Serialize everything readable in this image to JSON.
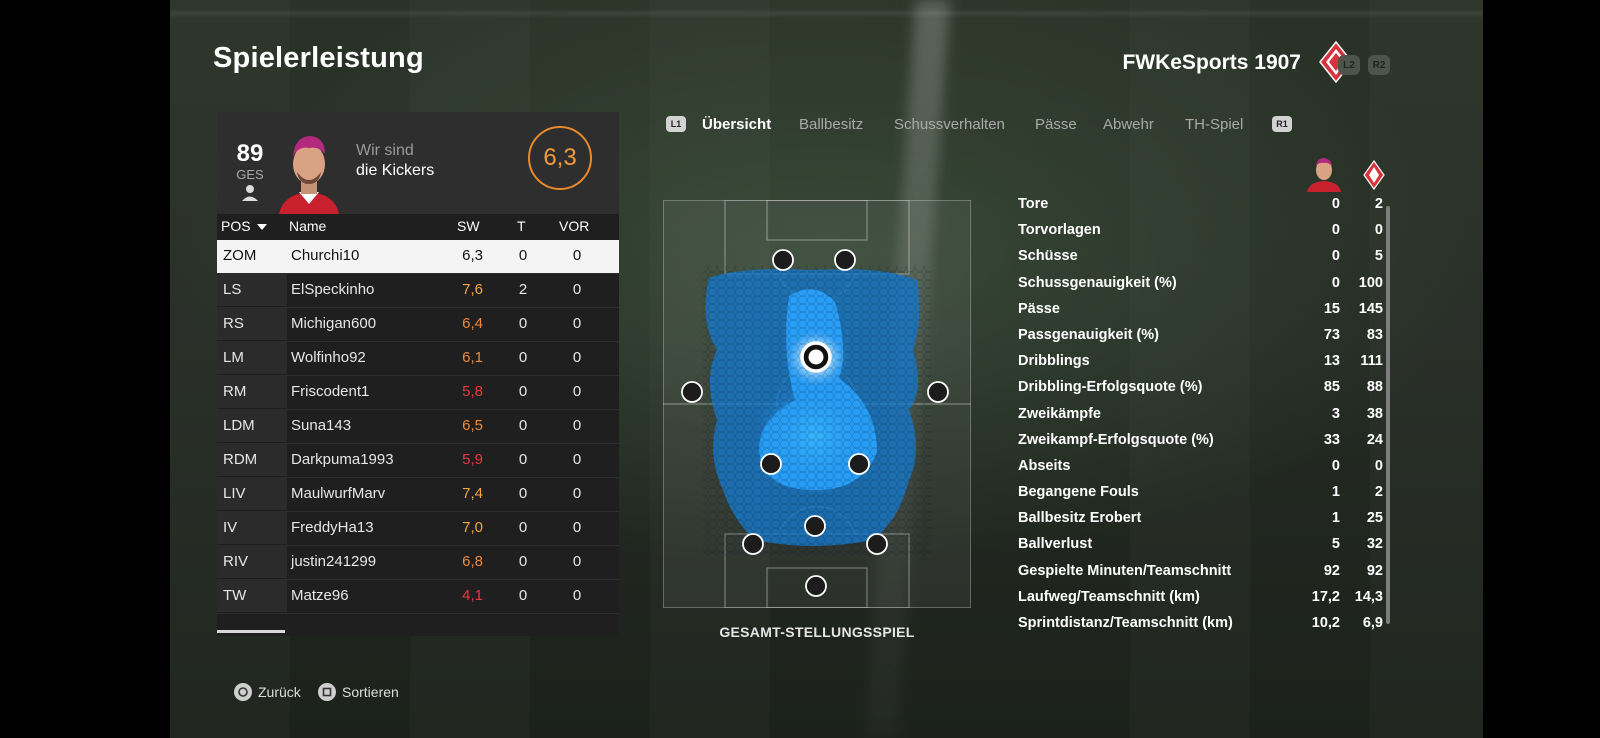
{
  "header": {
    "title": "Spielerleistung",
    "club_name": "FWKeSports 1907",
    "btn_left": "L2",
    "btn_right": "R2"
  },
  "player_card": {
    "overall": "89",
    "overall_label": "GES",
    "team_line1": "Wir sind",
    "team_line2": "die Kickers",
    "match_rating": "6,3"
  },
  "roster": {
    "columns": {
      "pos": "POS",
      "name": "Name",
      "sw": "SW",
      "t": "T",
      "vor": "VOR"
    },
    "rows": [
      {
        "pos": "ZOM",
        "name": "Churchi10",
        "sw": "6,3",
        "t": "0",
        "vor": "0",
        "selected": true,
        "color": "#111111"
      },
      {
        "pos": "LS",
        "name": "ElSpeckinho",
        "sw": "7,6",
        "t": "2",
        "vor": "0",
        "color": "#f4a63c"
      },
      {
        "pos": "RS",
        "name": "Michigan600",
        "sw": "6,4",
        "t": "0",
        "vor": "0",
        "color": "#f0883a"
      },
      {
        "pos": "LM",
        "name": "Wolfinho92",
        "sw": "6,1",
        "t": "0",
        "vor": "0",
        "color": "#f0883a"
      },
      {
        "pos": "RM",
        "name": "Friscodent1",
        "sw": "5,8",
        "t": "0",
        "vor": "0",
        "color": "#e8373e"
      },
      {
        "pos": "LDM",
        "name": "Suna143",
        "sw": "6,5",
        "t": "0",
        "vor": "0",
        "color": "#f0883a"
      },
      {
        "pos": "RDM",
        "name": "Darkpuma1993",
        "sw": "5,9",
        "t": "0",
        "vor": "0",
        "color": "#e8373e"
      },
      {
        "pos": "LIV",
        "name": "MaulwurfMarv",
        "sw": "7,4",
        "t": "0",
        "vor": "0",
        "color": "#f4a63c"
      },
      {
        "pos": "IV",
        "name": "FreddyHa13",
        "sw": "7,0",
        "t": "0",
        "vor": "0",
        "color": "#f4a63c"
      },
      {
        "pos": "RIV",
        "name": "justin241299",
        "sw": "6,8",
        "t": "0",
        "vor": "0",
        "color": "#f0883a"
      },
      {
        "pos": "TW",
        "name": "Matze96",
        "sw": "4,1",
        "t": "0",
        "vor": "0",
        "color": "#e8373e"
      }
    ]
  },
  "tabs": {
    "btn_left": "L1",
    "btn_right": "R1",
    "items": [
      {
        "label": "Übersicht",
        "active": true
      },
      {
        "label": "Ballbesitz"
      },
      {
        "label": "Schussverhalten"
      },
      {
        "label": "Pässe"
      },
      {
        "label": "Abwehr"
      },
      {
        "label": "TH-Spiel"
      }
    ]
  },
  "heatmap": {
    "caption": "GESAMT-STELLUNGSSPIEL"
  },
  "stats": [
    {
      "label": "Tore",
      "player": "0",
      "team": "2"
    },
    {
      "label": "Torvorlagen",
      "player": "0",
      "team": "0"
    },
    {
      "label": "Schüsse",
      "player": "0",
      "team": "5"
    },
    {
      "label": "Schussgenauigkeit (%)",
      "player": "0",
      "team": "100"
    },
    {
      "label": "Pässe",
      "player": "15",
      "team": "145"
    },
    {
      "label": "Passgenauigkeit (%)",
      "player": "73",
      "team": "83"
    },
    {
      "label": "Dribblings",
      "player": "13",
      "team": "111"
    },
    {
      "label": "Dribbling-Erfolgsquote (%)",
      "player": "85",
      "team": "88"
    },
    {
      "label": "Zweikämpfe",
      "player": "3",
      "team": "38"
    },
    {
      "label": "Zweikampf-Erfolgsquote (%)",
      "player": "33",
      "team": "24"
    },
    {
      "label": "Abseits",
      "player": "0",
      "team": "0"
    },
    {
      "label": "Begangene Fouls",
      "player": "1",
      "team": "2"
    },
    {
      "label": "Ballbesitz Erobert",
      "player": "1",
      "team": "25"
    },
    {
      "label": "Ballverlust",
      "player": "5",
      "team": "32"
    },
    {
      "label": "Gespielte Minuten/Teamschnitt",
      "player": "92",
      "team": "92"
    },
    {
      "label": "Laufweg/Teamschnitt (km)",
      "player": "17,2",
      "team": "14,3"
    },
    {
      "label": "Sprintdistanz/Teamschnitt (km)",
      "player": "10,2",
      "team": "6,9"
    }
  ],
  "footer": {
    "back": "Zurück",
    "sort": "Sortieren"
  },
  "colors": {
    "accent_orange": "#f39a38",
    "heat_blue": "#1e9fff",
    "club_red": "#d8323c"
  },
  "icons": [
    "person-icon",
    "club-crest-icon",
    "chevron-down-icon",
    "circle-button-icon",
    "square-button-icon"
  ]
}
